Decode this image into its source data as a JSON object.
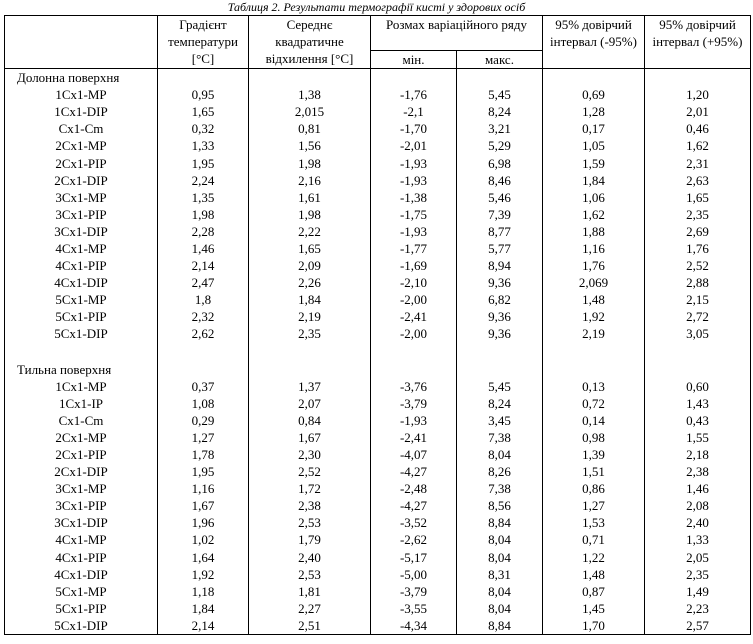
{
  "caption": "Таблиця 2. Результати термографії кисті у здорових осіб",
  "headers": {
    "gradient": "Градієнт температури [°C]",
    "stdev": "Середнє квадратичне відхилення [°C]",
    "range": "Розмах варіаційного ряду",
    "range_min": "мін.",
    "range_max": "макс.",
    "ci_low": "95% довірчий інтервал (-95%)",
    "ci_high": "95% довірчий інтервал (+95%)"
  },
  "sections": [
    {
      "title": "Долонна поверхня",
      "rows": [
        [
          "1Cx1-MP",
          "0,95",
          "1,38",
          "-1,76",
          "5,45",
          "0,69",
          "1,20"
        ],
        [
          "1Cx1-DIP",
          "1,65",
          "2,015",
          "-2,1",
          "8,24",
          "1,28",
          "2,01"
        ],
        [
          "Cx1-Cm",
          "0,32",
          "0,81",
          "-1,70",
          "3,21",
          "0,17",
          "0,46"
        ],
        [
          "2Cx1-MP",
          "1,33",
          "1,56",
          "-2,01",
          "5,29",
          "1,05",
          "1,62"
        ],
        [
          "2Cx1-PIP",
          "1,95",
          "1,98",
          "-1,93",
          "6,98",
          "1,59",
          "2,31"
        ],
        [
          "2Cx1-DIP",
          "2,24",
          "2,16",
          "-1,93",
          "8,46",
          "1,84",
          "2,63"
        ],
        [
          "3Cx1-MP",
          "1,35",
          "1,61",
          "-1,38",
          "5,46",
          "1,06",
          "1,65"
        ],
        [
          "3Cx1-PIP",
          "1,98",
          "1,98",
          "-1,75",
          "7,39",
          "1,62",
          "2,35"
        ],
        [
          "3Cx1-DIP",
          "2,28",
          "2,22",
          "-1,93",
          "8,77",
          "1,88",
          "2,69"
        ],
        [
          "4Cx1-MP",
          "1,46",
          "1,65",
          "-1,77",
          "5,77",
          "1,16",
          "1,76"
        ],
        [
          "4Cx1-PIP",
          "2,14",
          "2,09",
          "-1,69",
          "8,94",
          "1,76",
          "2,52"
        ],
        [
          "4Cx1-DIP",
          "2,47",
          "2,26",
          "-2,10",
          "9,36",
          "2,069",
          "2,88"
        ],
        [
          "5Cx1-MP",
          "1,8",
          "1,84",
          "-2,00",
          "6,82",
          "1,48",
          "2,15"
        ],
        [
          "5Cx1-PIP",
          "2,32",
          "2,19",
          "-2,41",
          "9,36",
          "1,92",
          "2,72"
        ],
        [
          "5Cx1-DIP",
          "2,62",
          "2,35",
          "-2,00",
          "9,36",
          "2,19",
          "3,05"
        ]
      ]
    },
    {
      "title": "Тильна поверхня",
      "rows": [
        [
          "1Cx1-MP",
          "0,37",
          "1,37",
          "-3,76",
          "5,45",
          "0,13",
          "0,60"
        ],
        [
          "1Cx1-IP",
          "1,08",
          "2,07",
          "-3,79",
          "8,24",
          "0,72",
          "1,43"
        ],
        [
          "Cx1-Cm",
          "0,29",
          "0,84",
          "-1,93",
          "3,45",
          "0,14",
          "0,43"
        ],
        [
          "2Cx1-MP",
          "1,27",
          "1,67",
          "-2,41",
          "7,38",
          "0,98",
          "1,55"
        ],
        [
          "2Cx1-PIP",
          "1,78",
          "2,30",
          "-4,07",
          "8,04",
          "1,39",
          "2,18"
        ],
        [
          "2Cx1-DIP",
          "1,95",
          "2,52",
          "-4,27",
          "8,26",
          "1,51",
          "2,38"
        ],
        [
          "3Cx1-MP",
          "1,16",
          "1,72",
          "-2,48",
          "7,38",
          "0,86",
          "1,46"
        ],
        [
          "3Cx1-PIP",
          "1,67",
          "2,38",
          "-4,27",
          "8,56",
          "1,27",
          "2,08"
        ],
        [
          "3Cx1-DIP",
          "1,96",
          "2,53",
          "-3,52",
          "8,84",
          "1,53",
          "2,40"
        ],
        [
          "4Cx1-MP",
          "1,02",
          "1,79",
          "-2,62",
          "8,04",
          "0,71",
          "1,33"
        ],
        [
          "4Cx1-PIP",
          "1,64",
          "2,40",
          "-5,17",
          "8,04",
          "1,22",
          "2,05"
        ],
        [
          "4Cx1-DIP",
          "1,92",
          "2,53",
          "-5,00",
          "8,31",
          "1,48",
          "2,35"
        ],
        [
          "5Cx1-MP",
          "1,18",
          "1,81",
          "-3,79",
          "8,04",
          "0,87",
          "1,49"
        ],
        [
          "5Cx1-PIP",
          "1,84",
          "2,27",
          "-3,55",
          "8,04",
          "1,45",
          "2,23"
        ],
        [
          "5Cx1-DIP",
          "2,14",
          "2,51",
          "-4,34",
          "8,84",
          "1,70",
          "2,57"
        ]
      ]
    }
  ]
}
